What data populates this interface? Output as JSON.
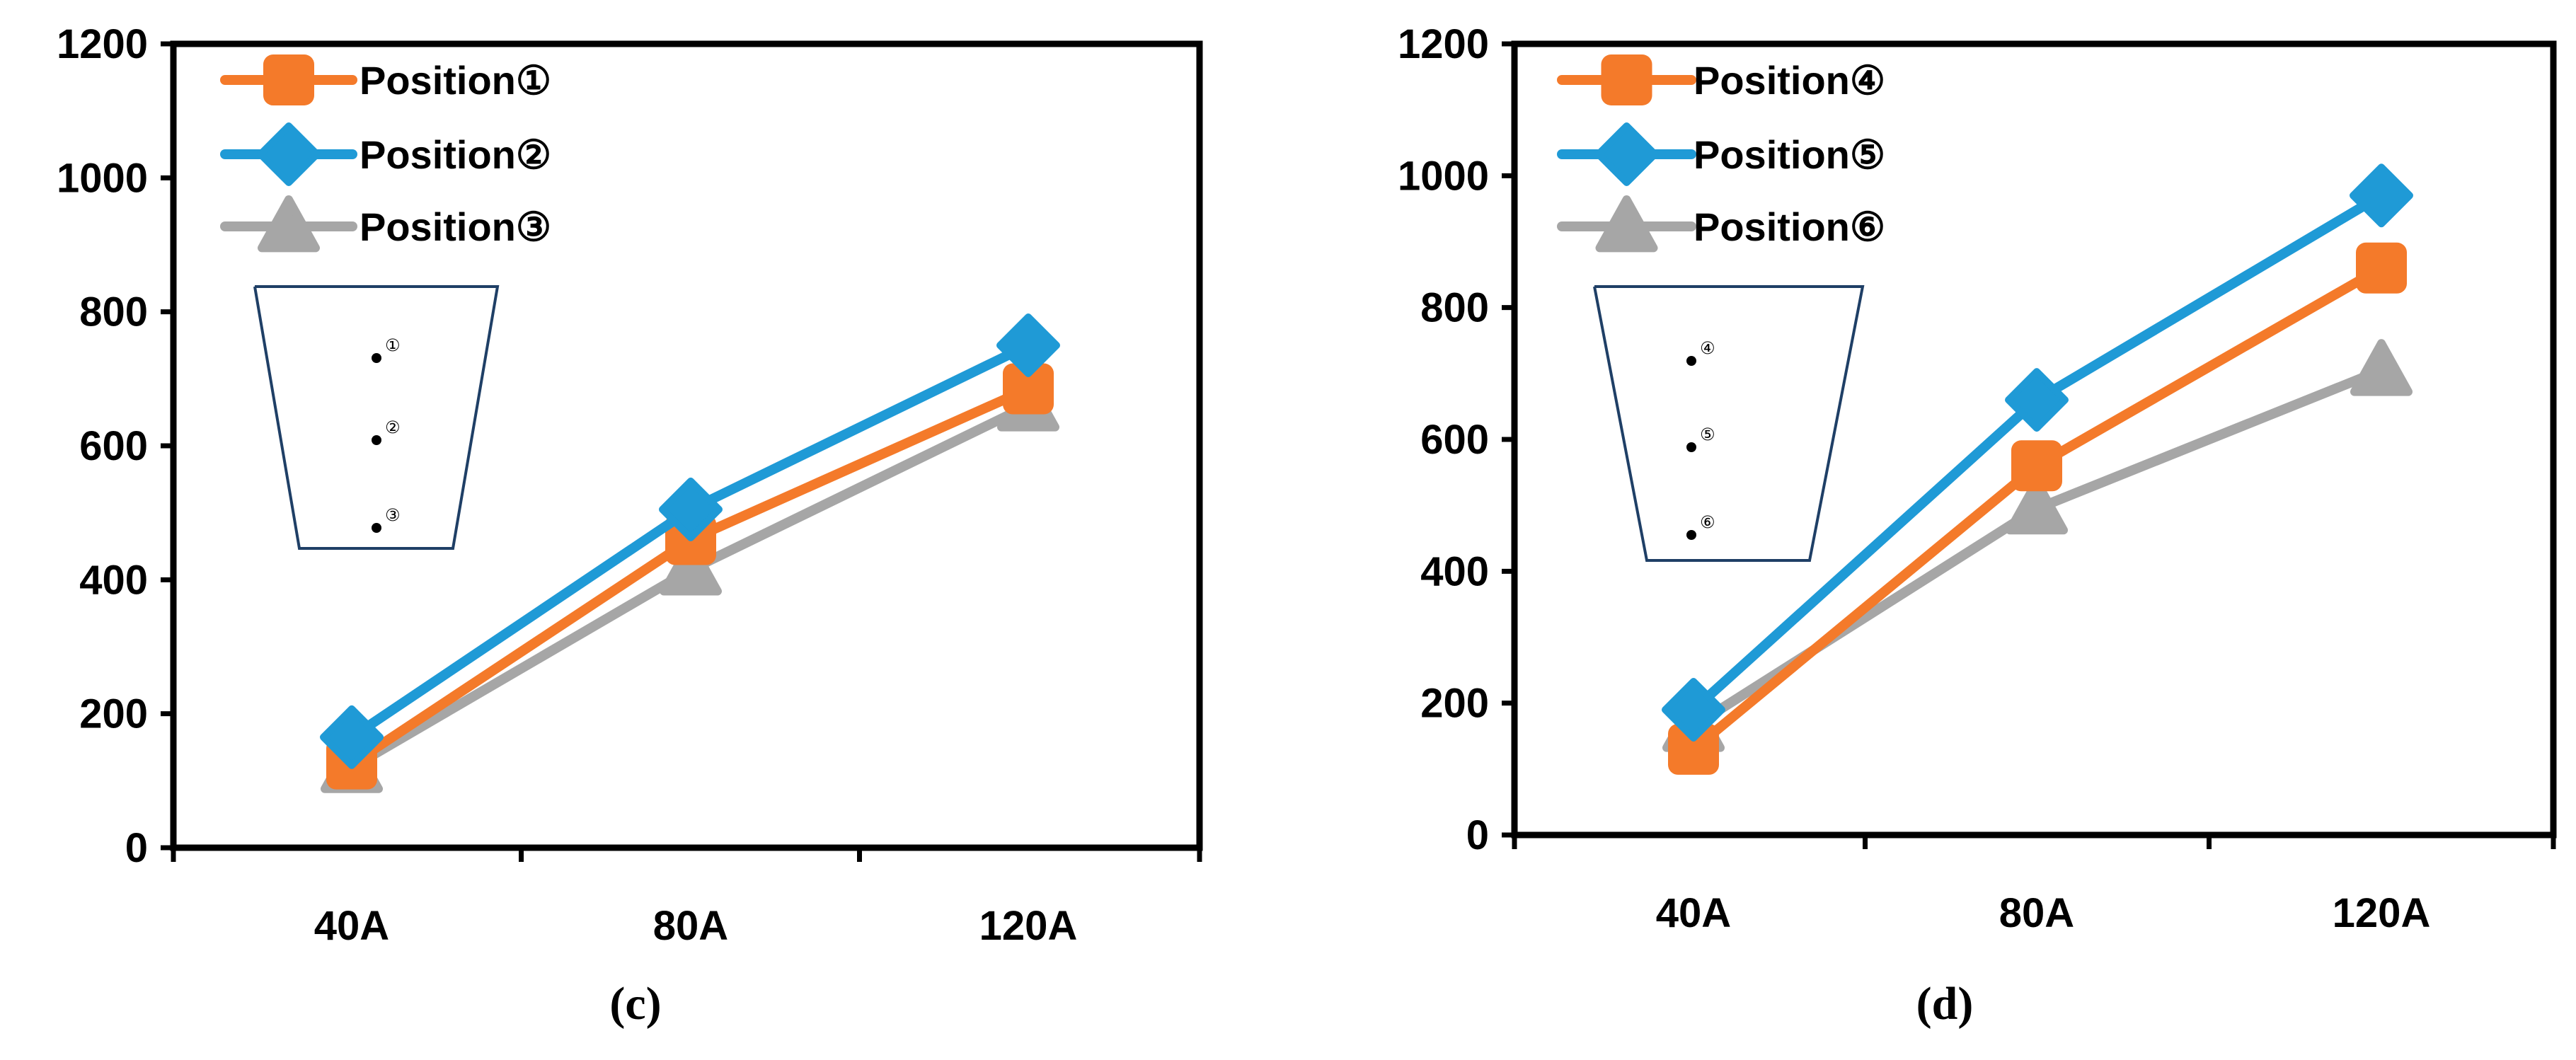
{
  "chart_data": [
    {
      "type": "line",
      "caption": "(c)",
      "categories": [
        "40A",
        "80A",
        "120A"
      ],
      "ylim": [
        0,
        1200
      ],
      "yticks": [
        0,
        200,
        400,
        600,
        800,
        1000,
        1200
      ],
      "xlabel": "",
      "ylabel": "",
      "legend": "top-left",
      "series": [
        {
          "name": "Position①",
          "color": "#F47A2A",
          "marker": "square",
          "values": [
            125,
            460,
            685
          ]
        },
        {
          "name": "Position②",
          "color": "#1F9AD6",
          "marker": "diamond",
          "values": [
            165,
            505,
            750
          ]
        },
        {
          "name": "Position③",
          "color": "#A6A6A6",
          "marker": "triangle",
          "values": [
            120,
            415,
            660
          ]
        }
      ],
      "inset_labels": [
        "①",
        "②",
        "③"
      ]
    },
    {
      "type": "line",
      "caption": "(d)",
      "categories": [
        "40A",
        "80A",
        "120A"
      ],
      "ylim": [
        0,
        1200
      ],
      "yticks": [
        0,
        200,
        400,
        600,
        800,
        1000,
        1200
      ],
      "xlabel": "",
      "ylabel": "",
      "legend": "top-left",
      "series": [
        {
          "name": "Position④",
          "color": "#F47A2A",
          "marker": "square",
          "values": [
            130,
            560,
            860
          ]
        },
        {
          "name": "Position⑤",
          "color": "#1F9AD6",
          "marker": "diamond",
          "values": [
            190,
            660,
            970
          ]
        },
        {
          "name": "Position⑥",
          "color": "#A6A6A6",
          "marker": "triangle",
          "values": [
            165,
            495,
            705
          ]
        }
      ],
      "inset_labels": [
        "④",
        "⑤",
        "⑥"
      ]
    }
  ]
}
